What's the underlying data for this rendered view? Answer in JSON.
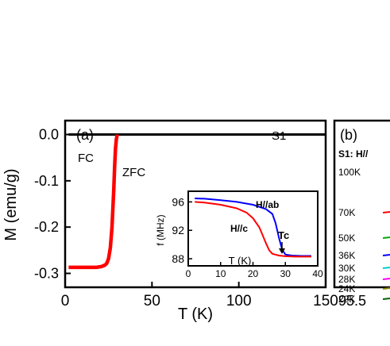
{
  "chart_data": [
    {
      "panel_label": "(a)",
      "type": "line",
      "sample_label": "S1",
      "xlabel": "T (K)",
      "ylabel": "M (emu/g)",
      "xlim": [
        0,
        150
      ],
      "ylim": [
        -0.33,
        0.03
      ],
      "x_ticks": [
        "0",
        "50",
        "100",
        "150"
      ],
      "y_ticks": [
        "0.0",
        "-0.1",
        "-0.2",
        "-0.3"
      ],
      "annotations": [
        "FC",
        "ZFC"
      ],
      "series": [
        {
          "name": "FC",
          "color": "#000000",
          "points": [
            [
              2,
              0.0
            ],
            [
              20,
              0.0
            ],
            [
              40,
              0.0
            ],
            [
              60,
              0.0
            ],
            [
              80,
              0.0
            ],
            [
              100,
              0.0
            ],
            [
              120,
              0.0
            ],
            [
              140,
              0.0
            ],
            [
              150,
              0.0
            ]
          ]
        },
        {
          "name": "ZFC",
          "color": "#ff0000",
          "points": [
            [
              2,
              -0.287
            ],
            [
              10,
              -0.287
            ],
            [
              18,
              -0.287
            ],
            [
              21,
              -0.285
            ],
            [
              23,
              -0.282
            ],
            [
              24,
              -0.278
            ],
            [
              25,
              -0.268
            ],
            [
              26,
              -0.245
            ],
            [
              27,
              -0.2
            ],
            [
              28,
              -0.12
            ],
            [
              28.5,
              -0.07
            ],
            [
              29,
              -0.03
            ],
            [
              29.5,
              -0.01
            ],
            [
              30,
              0.0
            ]
          ]
        }
      ],
      "inset": {
        "type": "line",
        "xlabel": "T (K)",
        "ylabel": "f (MHz)",
        "xlim": [
          0,
          40
        ],
        "ylim": [
          87,
          97.5
        ],
        "x_ticks": [
          "0",
          "10",
          "20",
          "30",
          "40"
        ],
        "y_ticks": [
          "96",
          "92",
          "88"
        ],
        "annotations": [
          "H//ab",
          "H//c",
          "Tc"
        ],
        "series": [
          {
            "name": "H//ab",
            "color": "#0000ff",
            "points": [
              [
                2,
                96.5
              ],
              [
                5,
                96.45
              ],
              [
                10,
                96.25
              ],
              [
                15,
                96.0
              ],
              [
                20,
                95.6
              ],
              [
                24,
                95.0
              ],
              [
                26,
                94.3
              ],
              [
                27,
                93.0
              ],
              [
                28,
                91.0
              ],
              [
                29,
                89.3
              ],
              [
                30,
                88.6
              ],
              [
                32,
                88.45
              ],
              [
                35,
                88.4
              ],
              [
                38,
                88.4
              ]
            ]
          },
          {
            "name": "H//c",
            "color": "#ff0000",
            "points": [
              [
                2,
                96.0
              ],
              [
                5,
                95.9
              ],
              [
                10,
                95.6
              ],
              [
                15,
                95.1
              ],
              [
                18,
                94.5
              ],
              [
                20,
                93.7
              ],
              [
                22,
                92.4
              ],
              [
                23,
                91.3
              ],
              [
                24,
                90.2
              ],
              [
                25,
                89.2
              ],
              [
                26,
                88.7
              ],
              [
                28,
                88.45
              ],
              [
                30,
                88.35
              ],
              [
                33,
                88.3
              ],
              [
                38,
                88.3
              ]
            ]
          }
        ]
      }
    },
    {
      "panel_label": "(b)",
      "type": "line",
      "header": "S1: H//",
      "x_ticks": [
        "95.5"
      ],
      "temperature_labels": [
        "100K",
        "70K",
        "50K",
        "36K",
        "30K",
        "28K",
        "24K",
        "22K"
      ],
      "series_colors": [
        "#000000",
        "#ff0000",
        "#00aa00",
        "#0000ff",
        "#00cccc",
        "#ff00ff",
        "#888800",
        "#006600"
      ]
    }
  ]
}
